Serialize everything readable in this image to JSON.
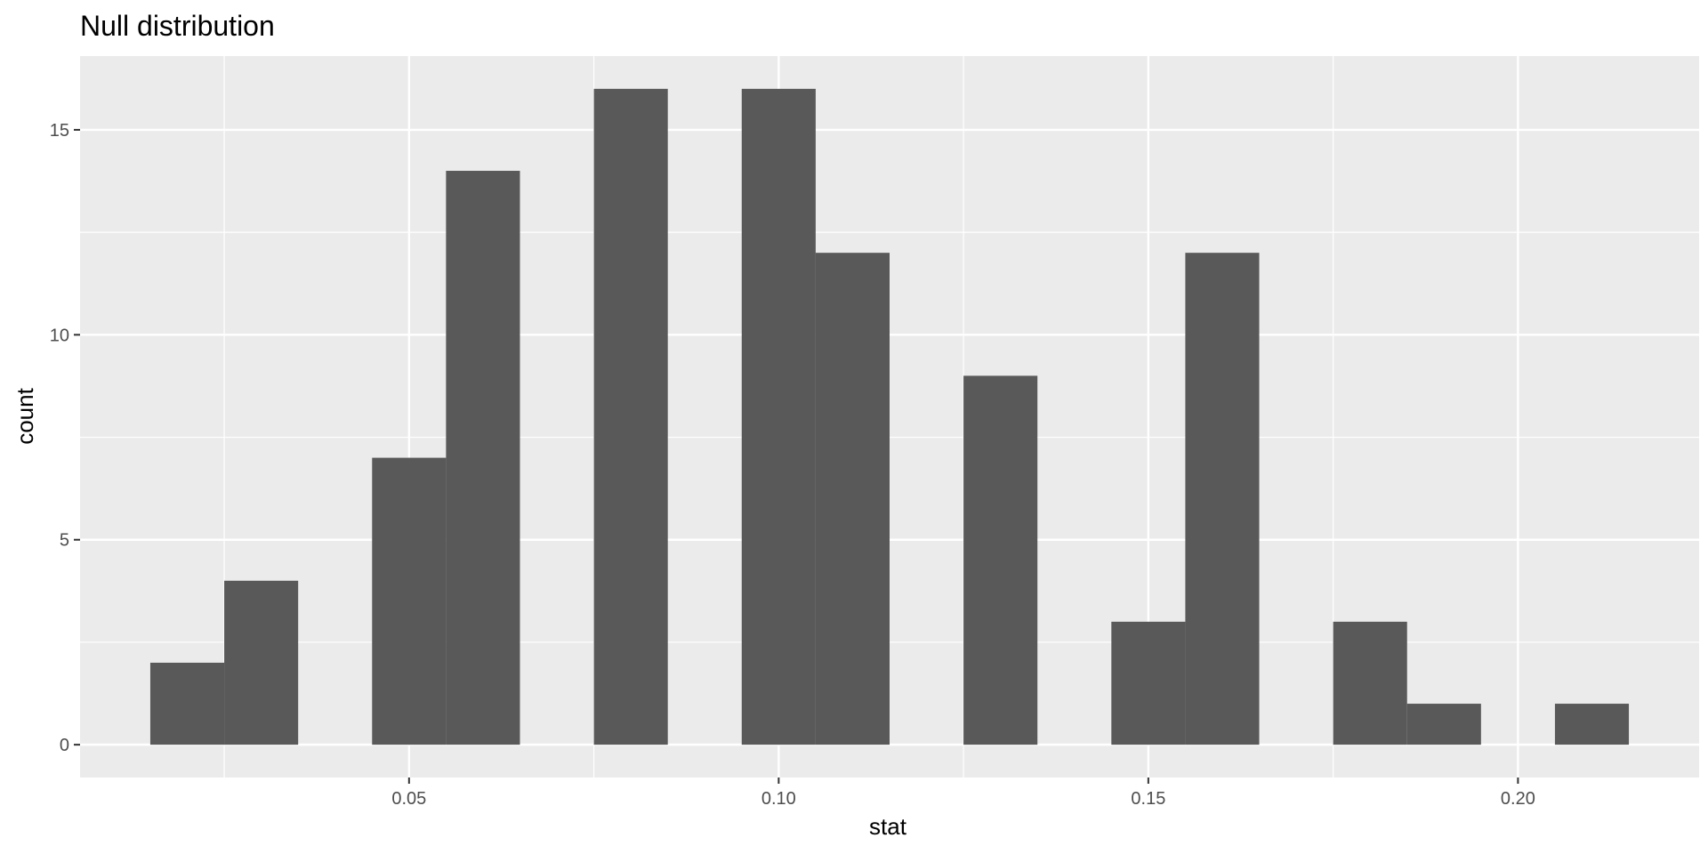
{
  "chart_data": {
    "type": "bar",
    "title": "Null distribution",
    "xlabel": "stat",
    "ylabel": "count",
    "binwidth": 0.01,
    "bins": [
      {
        "x": 0.02,
        "count": 2
      },
      {
        "x": 0.03,
        "count": 4
      },
      {
        "x": 0.04,
        "count": 0
      },
      {
        "x": 0.05,
        "count": 7
      },
      {
        "x": 0.06,
        "count": 14
      },
      {
        "x": 0.07,
        "count": 0
      },
      {
        "x": 0.08,
        "count": 16
      },
      {
        "x": 0.09,
        "count": 0
      },
      {
        "x": 0.1,
        "count": 16
      },
      {
        "x": 0.11,
        "count": 12
      },
      {
        "x": 0.12,
        "count": 0
      },
      {
        "x": 0.13,
        "count": 9
      },
      {
        "x": 0.14,
        "count": 0
      },
      {
        "x": 0.15,
        "count": 3
      },
      {
        "x": 0.16,
        "count": 12
      },
      {
        "x": 0.17,
        "count": 0
      },
      {
        "x": 0.18,
        "count": 3
      },
      {
        "x": 0.19,
        "count": 1
      },
      {
        "x": 0.2,
        "count": 0
      },
      {
        "x": 0.21,
        "count": 1
      }
    ],
    "xlim": [
      0.0055,
      0.2245
    ],
    "ylim": [
      -0.8,
      16.8
    ],
    "x_ticks": [
      0.05,
      0.1,
      0.15,
      0.2
    ],
    "x_tick_labels": [
      "0.05",
      "0.10",
      "0.15",
      "0.20"
    ],
    "x_minor_ticks": [
      0.025,
      0.075,
      0.125,
      0.175
    ],
    "y_ticks": [
      0,
      5,
      10,
      15
    ],
    "y_tick_labels": [
      "0",
      "5",
      "10",
      "15"
    ],
    "y_minor_ticks": [
      2.5,
      7.5,
      12.5
    ],
    "grid": true,
    "colors": {
      "panel_bg": "#ebebeb",
      "grid": "#ffffff",
      "bar_fill": "#595959",
      "tick": "#333333"
    }
  }
}
